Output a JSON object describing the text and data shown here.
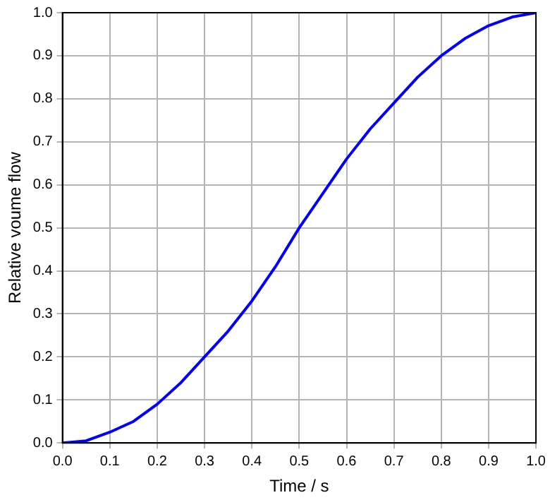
{
  "chart_data": {
    "type": "line",
    "xlabel": "Time / s",
    "ylabel": "Relative voume flow",
    "x": [
      0,
      0.05,
      0.1,
      0.15,
      0.2,
      0.25,
      0.3,
      0.35,
      0.4,
      0.45,
      0.5,
      0.55,
      0.6,
      0.65,
      0.7,
      0.75,
      0.8,
      0.85,
      0.9,
      0.95,
      1.0
    ],
    "series": [
      {
        "color": "#0000ff",
        "values": [
          0,
          0.005,
          0.025,
          0.05,
          0.09,
          0.14,
          0.2,
          0.26,
          0.33,
          0.41,
          0.5,
          0.58,
          0.66,
          0.73,
          0.79,
          0.85,
          0.9,
          0.94,
          0.97,
          0.99,
          1.0
        ]
      }
    ],
    "xlim": [
      0,
      1
    ],
    "ylim": [
      0,
      1
    ],
    "xticks": [
      {
        "value": 0,
        "label": "0.0"
      },
      0.1,
      0.2,
      0.3,
      0.4,
      0.5,
      0.6,
      0.7,
      0.8,
      0.9,
      {
        "value": 1,
        "label": "1.0"
      }
    ],
    "yticks": [
      {
        "value": 0,
        "label": "0.0"
      },
      0.1,
      0.2,
      0.3,
      0.4,
      0.5,
      0.6,
      0.7,
      0.8,
      0.9,
      {
        "value": 1,
        "label": "1.0"
      }
    ],
    "grid": true,
    "legend": false,
    "marker": "none",
    "line_style": "solid"
  }
}
